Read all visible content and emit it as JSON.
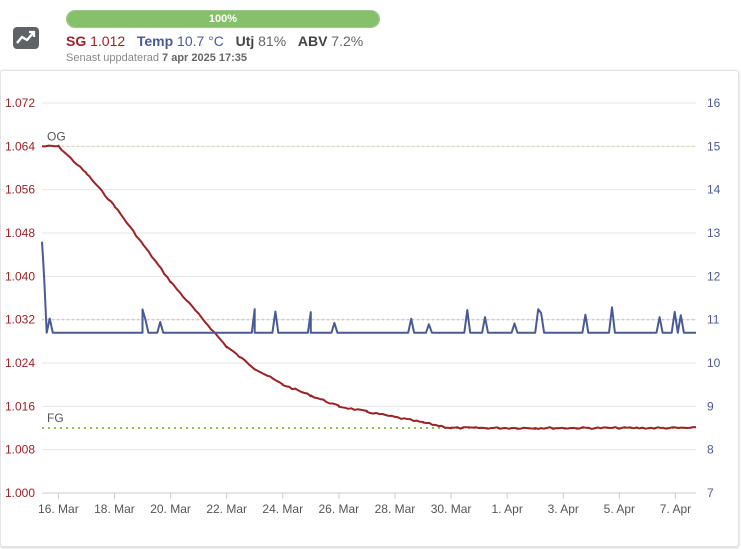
{
  "header": {
    "icon": "line-chart-icon",
    "progress": {
      "percent": 100,
      "label": "100%"
    },
    "sg": {
      "label": "SG",
      "value": "1.012"
    },
    "temp": {
      "label": "Temp",
      "value": "10.7 °C"
    },
    "utj": {
      "label": "Utj",
      "value": "81%"
    },
    "abv": {
      "label": "ABV",
      "value": "7.2%"
    },
    "updated_prefix": "Senast uppdaterad",
    "updated_value": "7 apr 2025 17:35"
  },
  "colors": {
    "sg": "#9b2226",
    "temp": "#4a5a96",
    "fg_line": "#8bc34a",
    "progress": "#86c06a"
  },
  "chart_data": {
    "type": "line",
    "x_ticks": [
      "16. Mar",
      "18. Mar",
      "20. Mar",
      "22. Mar",
      "24. Mar",
      "26. Mar",
      "28. Mar",
      "30. Mar",
      "1. Apr",
      "3. Apr",
      "5. Apr",
      "7. Apr"
    ],
    "x_range": [
      "2025-03-15T10:00",
      "2025-04-07T17:35"
    ],
    "y_left": {
      "min": 1.0,
      "max": 1.072,
      "ticks": [
        "1.000",
        "1.008",
        "1.016",
        "1.024",
        "1.032",
        "1.040",
        "1.048",
        "1.056",
        "1.064",
        "1.072"
      ]
    },
    "y_right": {
      "min": 7,
      "max": 16,
      "ticks": [
        "7",
        "8",
        "9",
        "10",
        "11",
        "12",
        "13",
        "14",
        "15",
        "16"
      ]
    },
    "reference_lines": [
      {
        "label": "OG",
        "axis": "left",
        "value": 1.064
      },
      {
        "label": "FG",
        "axis": "left",
        "value": 1.012
      },
      {
        "label": "",
        "axis": "right",
        "value": 11.0
      }
    ],
    "series": [
      {
        "axis": "left",
        "x": [
          "2025-03-15T10:00",
          "2025-03-16T00:00",
          "2025-03-17T00:00",
          "2025-03-18T00:00",
          "2025-03-19T00:00",
          "2025-03-20T00:00",
          "2025-03-21T00:00",
          "2025-03-22T00:00",
          "2025-03-23T00:00",
          "2025-03-24T00:00",
          "2025-03-25T00:00",
          "2025-03-26T00:00",
          "2025-03-27T00:00",
          "2025-03-28T00:00",
          "2025-03-29T00:00",
          "2025-03-30T00:00",
          "2025-03-31T00:00",
          "2025-04-02T00:00",
          "2025-04-07T17:35"
        ],
        "values": [
          1.064,
          1.064,
          1.059,
          1.053,
          1.046,
          1.039,
          1.033,
          1.027,
          1.023,
          1.02,
          1.018,
          1.016,
          1.015,
          1.014,
          1.013,
          1.012,
          1.012,
          1.012,
          1.012
        ]
      },
      {
        "axis": "right",
        "x": [
          "2025-03-15T10:00",
          "2025-03-15T12:00",
          "2025-03-15T14:00",
          "2025-03-17T00:00",
          "2025-03-19T00:00",
          "2025-03-21T00:00",
          "2025-03-23T00:00",
          "2025-03-25T00:00",
          "2025-03-27T00:00",
          "2025-03-29T00:00",
          "2025-03-31T00:00",
          "2025-04-02T00:00",
          "2025-04-04T00:00",
          "2025-04-06T00:00",
          "2025-04-07T17:35"
        ],
        "values": [
          12.8,
          11.9,
          10.7,
          10.7,
          10.7,
          10.7,
          10.7,
          10.7,
          10.7,
          10.7,
          10.7,
          10.7,
          10.7,
          10.7,
          10.7
        ]
      }
    ]
  }
}
